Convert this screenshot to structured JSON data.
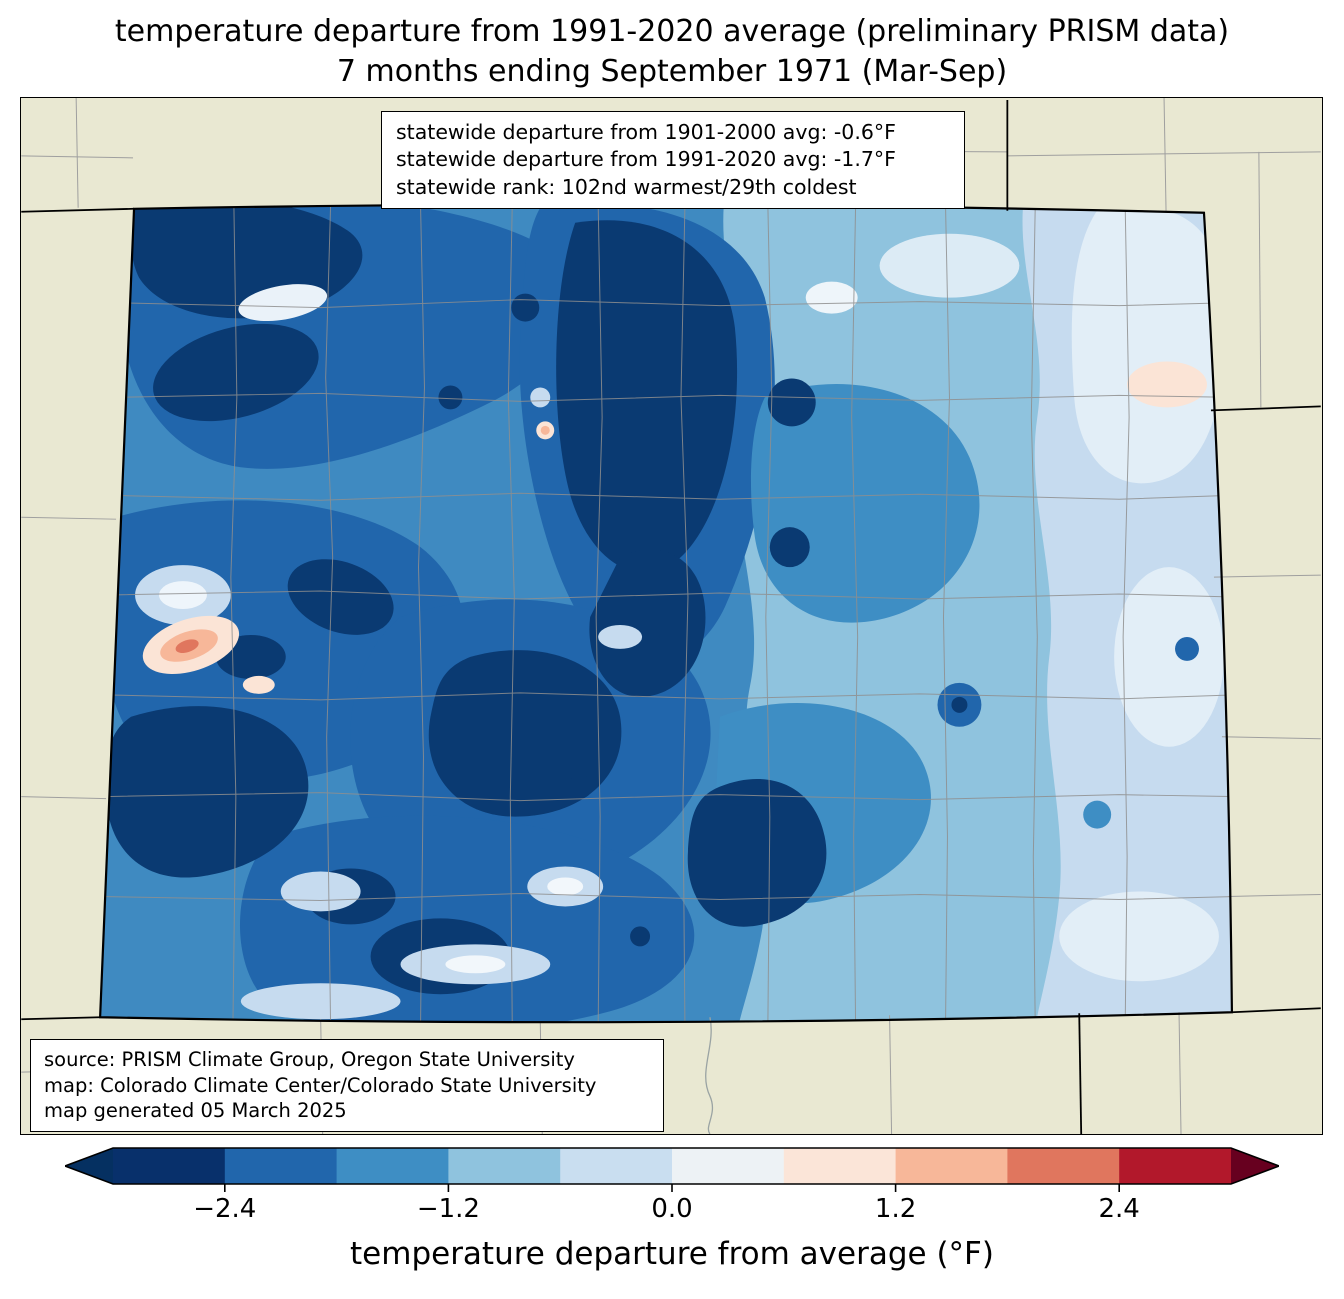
{
  "title": {
    "line1": "temperature departure from 1991-2020 average (preliminary PRISM data)",
    "line2": "7 months ending September 1971 (Mar-Sep)"
  },
  "stats_box": {
    "line1": "statewide departure from 1901-2000 avg: -0.6°F",
    "line2": "statewide departure from 1991-2020 avg: -1.7°F",
    "line3": "statewide rank: 102nd warmest/29th coldest"
  },
  "source_box": {
    "line1": "source: PRISM Climate Group, Oregon State University",
    "line2": "map: Colorado Climate Center/Colorado State University",
    "line3": "map generated 05 March 2025"
  },
  "colorbar": {
    "axis_label": "temperature departure from average (°F)",
    "tick_labels": [
      "−2.4",
      "−1.2",
      "0.0",
      "1.2",
      "2.4"
    ],
    "tick_values": [
      -2.4,
      -1.2,
      0.0,
      1.2,
      2.4
    ],
    "range": [
      -3.0,
      3.0
    ],
    "segment_colors": [
      "#08306b",
      "#2166ac",
      "#3e8ec4",
      "#8fc3de",
      "#c9def0",
      "#edf2f5",
      "#fbe5d8",
      "#f7b799",
      "#e0765e",
      "#b2182b"
    ],
    "left_arrow_color": "#053061",
    "right_arrow_color": "#67001f"
  },
  "chart_data": {
    "type": "heatmap",
    "title": "temperature departure from 1991-2020 average (preliminary PRISM data)",
    "subtitle": "7 months ending September 1971 (Mar-Sep)",
    "region": "Colorado",
    "colorbar_label": "temperature departure from average (°F)",
    "colorbar_ticks": [
      -2.4,
      -1.2,
      0.0,
      1.2,
      2.4
    ],
    "colorbar_range": [
      -3.0,
      3.0
    ],
    "statewide_departure_1901_2000_F": -0.6,
    "statewide_departure_1991_2020_F": -1.7,
    "statewide_rank": "102nd warmest/29th coldest",
    "pattern_summary": "Nearly all of Colorado below average; darkest negative anomalies in northwest, north-central and southwest mountains; mildest (near zero to slightly positive) spots in far west-central and far northeast"
  }
}
